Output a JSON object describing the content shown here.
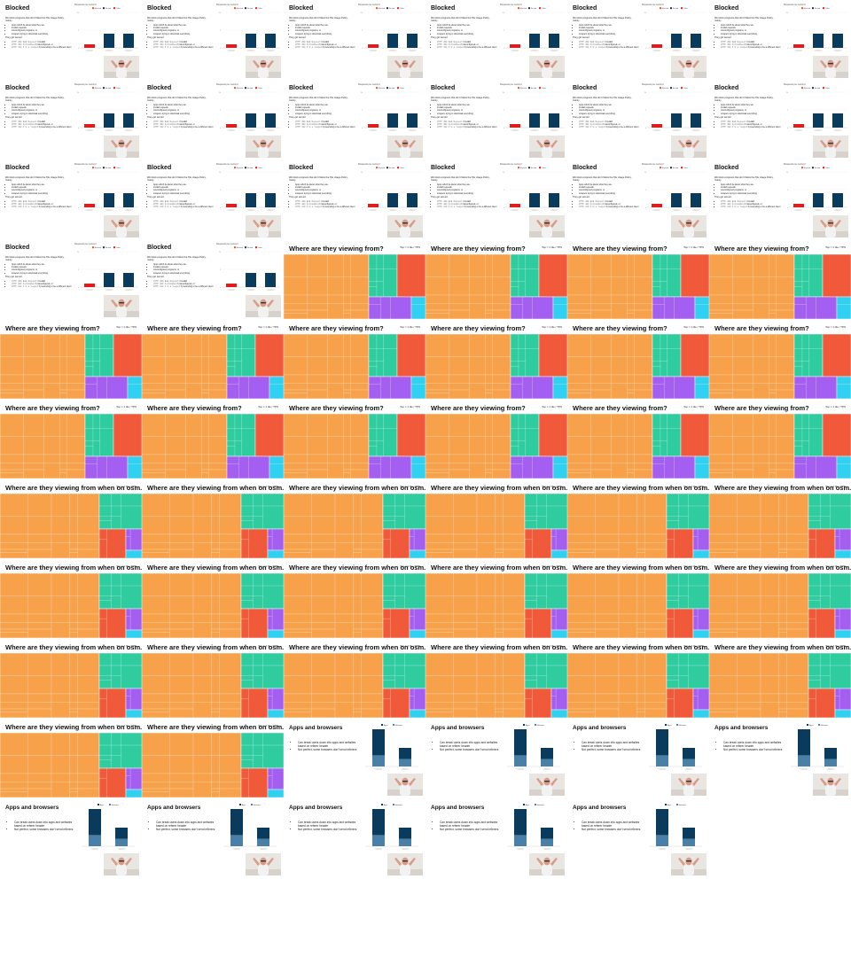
{
  "layout": {
    "columns": 6,
    "tile_order": [
      "blocked",
      "blocked",
      "blocked",
      "blocked",
      "blocked",
      "blocked",
      "blocked",
      "blocked",
      "blocked",
      "blocked",
      "blocked",
      "blocked",
      "blocked",
      "blocked",
      "blocked",
      "blocked",
      "blocked",
      "blocked",
      "blocked",
      "blocked",
      "where",
      "where",
      "where",
      "where",
      "where",
      "where",
      "where",
      "where",
      "where",
      "where",
      "where",
      "where",
      "where",
      "where",
      "where",
      "where",
      "osm",
      "osm",
      "osm",
      "osm",
      "osm",
      "osm",
      "osm",
      "osm",
      "osm",
      "osm",
      "osm",
      "osm",
      "osm",
      "osm",
      "osm",
      "osm",
      "osm",
      "osm",
      "osm",
      "osm",
      "apps",
      "apps",
      "apps",
      "apps",
      "apps",
      "apps",
      "apps",
      "apps",
      "apps",
      "empty",
      "empty",
      "empty",
      "empty",
      "empty",
      "empty"
    ]
  },
  "slides": {
    "blocked": {
      "title": "Blocked",
      "intro": "We block programs that don't follow the Tile Usage Policy, mainly",
      "bullets": [
        "Apps which lie about what they are",
        "Invalid requests",
        "misconfigured programs, or",
        "scrapers trying to download everything"
      ],
      "subheading": "They get served",
      "served": [
        {
          "code": "HTTP 400 Bad Request",
          "text": " if invalid"
        },
        {
          "code": "HTTP 403 Forbidden",
          "text": " if misconfigured, or"
        },
        {
          "code": "HTTP 418 I'm a teapot",
          "text": " if pretending to be a different client"
        }
      ],
      "chart": {
        "title": "Requests per second",
        "legend": [
          "Blocked",
          "Served",
          "Other"
        ],
        "colors": [
          "#f04e23",
          "#0a3a5c",
          "#e01b1b"
        ],
        "categories": [
          "Category 1",
          "Category 2",
          "Category 3"
        ],
        "stacks": [
          [
            0,
            0,
            0
          ],
          [
            0,
            4,
            4
          ],
          [
            1,
            0,
            0
          ]
        ],
        "ylim": [
          0,
          10
        ]
      }
    },
    "where": {
      "title": "Where are they viewing from?",
      "top_label": "Top = 1 tile / TPS"
    },
    "osm": {
      "title": "Where are they viewing from when on osm.org?",
      "top_label": "Top = 1 tile / TPS"
    },
    "apps": {
      "title": "Apps and browsers",
      "bullets": [
        "Can break users down into apps and websites based on referer header",
        "Not perfect, some browsers don't send referers"
      ],
      "chart": {
        "legend": [
          "Apps",
          "Websites"
        ],
        "colors": [
          "#0a3a5c",
          "#4a7fa8"
        ],
        "categories": [
          "Category 1",
          "Category 2"
        ],
        "stacks": [
          [
            7,
            3
          ],
          [
            3,
            2
          ]
        ]
      }
    }
  },
  "treemap_colors": {
    "where": [
      "#f7a24b",
      "#2ecc9f",
      "#f05a3a",
      "#a45ef0",
      "#2fd0f0"
    ],
    "osm": [
      "#f7a24b",
      "#2ecc9f",
      "#f05a3a",
      "#a45ef0",
      "#2fd0f0"
    ]
  }
}
